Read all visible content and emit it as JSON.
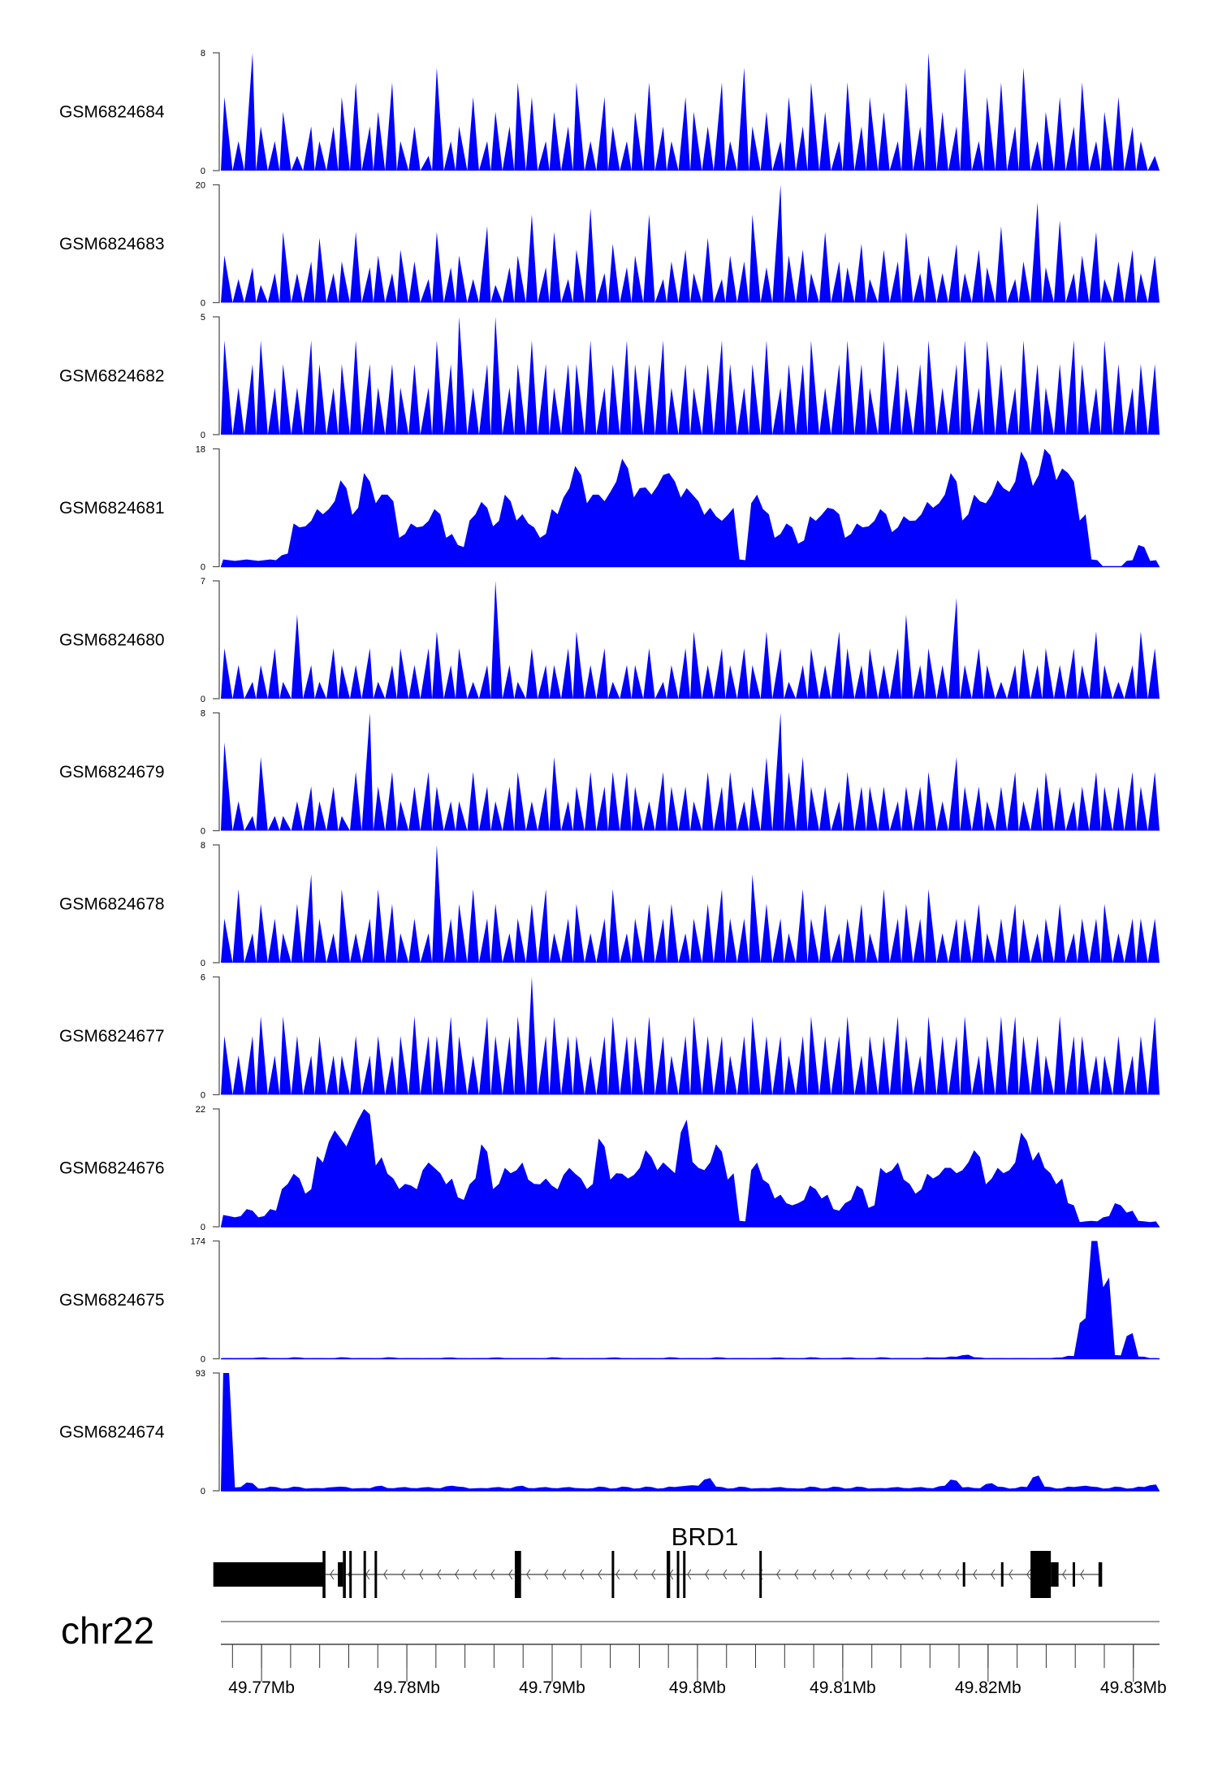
{
  "chart_data": {
    "type": "area",
    "chromosome": "chr22",
    "xrange_mb": [
      49.7672,
      49.8318
    ],
    "x_ticks": [
      "49.77Mb",
      "49.78Mb",
      "49.79Mb",
      "49.8Mb",
      "49.81Mb",
      "49.82Mb",
      "49.83Mb"
    ],
    "x_tick_values": [
      49.77,
      49.78,
      49.79,
      49.8,
      49.81,
      49.82,
      49.83
    ],
    "minor_tick_step_mb": 0.002,
    "fill_color": "#0000ff",
    "tracks": [
      {
        "name": "GSM6824684",
        "ymax": 8,
        "style": "spike",
        "values": [
          5,
          2,
          8,
          3,
          2,
          4,
          1,
          3,
          2,
          3,
          5,
          6,
          3,
          4,
          6,
          2,
          3,
          1,
          7,
          2,
          3,
          5,
          2,
          4,
          3,
          6,
          5,
          2,
          4,
          3,
          6,
          2,
          5,
          3,
          2,
          4,
          6,
          3,
          2,
          5,
          4,
          3,
          6,
          2,
          7,
          3,
          4,
          2,
          5,
          3,
          6,
          4,
          2,
          6,
          3,
          5,
          4,
          2,
          6,
          3,
          8,
          4,
          3,
          7,
          2,
          5,
          6,
          3,
          7,
          2,
          4,
          5,
          3,
          6,
          2,
          4,
          5,
          3,
          2,
          1
        ]
      },
      {
        "name": "GSM6824683",
        "ymax": 20,
        "style": "spike",
        "values": [
          8,
          4,
          6,
          3,
          5,
          12,
          5,
          7,
          11,
          5,
          7,
          12,
          6,
          8,
          5,
          9,
          7,
          4,
          12,
          6,
          8,
          4,
          13,
          3,
          6,
          8,
          15,
          6,
          12,
          4,
          9,
          16,
          5,
          10,
          6,
          8,
          15,
          4,
          7,
          9,
          5,
          11,
          4,
          8,
          7,
          15,
          6,
          20,
          8,
          9,
          5,
          12,
          7,
          6,
          10,
          4,
          9,
          7,
          12,
          5,
          8,
          5,
          10,
          5,
          9,
          6,
          13,
          4,
          7,
          17,
          6,
          14,
          5,
          8,
          12,
          4,
          7,
          9,
          5,
          8
        ]
      },
      {
        "name": "GSM6824682",
        "ymax": 5,
        "style": "spike",
        "values": [
          4,
          2,
          3,
          4,
          2,
          3,
          2,
          4,
          3,
          2,
          3,
          4,
          3,
          2,
          3,
          2,
          3,
          2,
          4,
          3,
          5,
          2,
          3,
          5,
          2,
          3,
          4,
          3,
          2,
          3,
          3,
          4,
          2,
          3,
          4,
          3,
          3,
          4,
          2,
          3,
          2,
          3,
          4,
          3,
          2,
          3,
          4,
          2,
          3,
          3,
          4,
          2,
          3,
          4,
          3,
          2,
          4,
          3,
          2,
          3,
          4,
          2,
          3,
          4,
          2,
          4,
          3,
          2,
          4,
          3,
          2,
          3,
          4,
          3,
          2,
          4,
          3,
          2,
          3,
          3
        ]
      },
      {
        "name": "GSM6824681",
        "ymax": 18,
        "style": "area",
        "values": [
          1,
          1,
          1,
          1,
          1,
          2,
          6,
          7,
          8,
          10,
          12,
          9,
          13,
          11,
          10,
          5,
          6,
          7,
          8,
          5,
          3,
          8,
          9,
          7,
          10,
          8,
          6,
          5,
          8,
          12,
          14,
          11,
          10,
          13,
          15,
          12,
          11,
          14,
          13,
          12,
          10,
          9,
          7,
          9,
          1,
          11,
          8,
          5,
          6,
          4,
          7,
          9,
          8,
          5,
          6,
          7,
          8,
          6,
          7,
          8,
          9,
          11,
          13,
          8,
          10,
          11,
          12,
          13,
          16,
          14,
          17,
          15,
          13,
          8,
          1,
          0,
          0,
          1,
          3,
          1
        ]
      },
      {
        "name": "GSM6824680",
        "ymax": 7,
        "style": "spike",
        "values": [
          3,
          2,
          1,
          2,
          3,
          1,
          5,
          2,
          1,
          3,
          2,
          2,
          3,
          1,
          2,
          3,
          2,
          3,
          4,
          2,
          3,
          1,
          2,
          7,
          2,
          1,
          3,
          2,
          2,
          3,
          4,
          2,
          3,
          1,
          2,
          2,
          3,
          1,
          2,
          3,
          4,
          2,
          3,
          2,
          3,
          2,
          4,
          3,
          1,
          2,
          3,
          2,
          4,
          3,
          2,
          3,
          2,
          3,
          5,
          2,
          3,
          2,
          6,
          2,
          3,
          2,
          1,
          2,
          3,
          2,
          3,
          2,
          3,
          2,
          4,
          2,
          1,
          2,
          4,
          3
        ]
      },
      {
        "name": "GSM6824679",
        "ymax": 8,
        "style": "spike",
        "values": [
          6,
          2,
          1,
          5,
          1,
          1,
          2,
          3,
          2,
          3,
          1,
          4,
          8,
          3,
          4,
          2,
          3,
          4,
          3,
          2,
          2,
          4,
          3,
          2,
          3,
          4,
          2,
          3,
          5,
          2,
          3,
          4,
          3,
          4,
          4,
          3,
          2,
          4,
          3,
          3,
          2,
          4,
          3,
          4,
          2,
          3,
          5,
          8,
          4,
          5,
          3,
          3,
          2,
          4,
          3,
          3,
          3,
          2,
          3,
          3,
          4,
          2,
          5,
          3,
          3,
          2,
          3,
          4,
          2,
          3,
          4,
          3,
          2,
          3,
          4,
          3,
          3,
          4,
          3,
          4
        ]
      },
      {
        "name": "GSM6824678",
        "ymax": 8,
        "style": "spike",
        "values": [
          3,
          5,
          2,
          4,
          3,
          2,
          4,
          6,
          3,
          2,
          5,
          2,
          3,
          5,
          4,
          2,
          3,
          2,
          8,
          3,
          4,
          5,
          3,
          4,
          2,
          3,
          4,
          5,
          2,
          3,
          4,
          2,
          3,
          5,
          2,
          3,
          4,
          3,
          4,
          2,
          3,
          4,
          5,
          3,
          3,
          6,
          4,
          3,
          2,
          5,
          3,
          4,
          2,
          3,
          4,
          2,
          5,
          3,
          4,
          3,
          5,
          2,
          3,
          3,
          4,
          2,
          3,
          4,
          3,
          2,
          3,
          4,
          2,
          3,
          3,
          4,
          2,
          3,
          3,
          3
        ]
      },
      {
        "name": "GSM6824677",
        "ymax": 6,
        "style": "spike",
        "values": [
          3,
          2,
          3,
          4,
          2,
          4,
          3,
          2,
          3,
          2,
          2,
          3,
          2,
          3,
          2,
          3,
          4,
          3,
          3,
          4,
          3,
          2,
          4,
          3,
          3,
          4,
          6,
          3,
          4,
          3,
          3,
          2,
          3,
          4,
          3,
          3,
          4,
          3,
          2,
          3,
          4,
          3,
          3,
          2,
          3,
          4,
          3,
          3,
          2,
          3,
          4,
          3,
          3,
          4,
          2,
          3,
          3,
          4,
          3,
          2,
          4,
          3,
          3,
          4,
          2,
          3,
          4,
          4,
          3,
          3,
          2,
          4,
          3,
          3,
          2,
          2,
          3,
          2,
          3,
          4
        ]
      },
      {
        "name": "GSM6824676",
        "ymax": 22,
        "style": "area",
        "values": [
          2,
          2,
          3,
          2,
          3,
          8,
          9,
          7,
          12,
          18,
          15,
          20,
          21,
          13,
          9,
          8,
          7,
          12,
          10,
          9,
          5,
          9,
          14,
          8,
          10,
          12,
          8,
          9,
          7,
          11,
          9,
          8,
          15,
          10,
          9,
          11,
          13,
          12,
          10,
          20,
          11,
          12,
          14,
          10,
          1,
          12,
          8,
          6,
          4,
          5,
          7,
          6,
          3,
          5,
          7,
          4,
          10,
          12,
          8,
          7,
          9,
          11,
          10,
          12,
          13,
          9,
          10,
          12,
          16,
          14,
          10,
          9,
          4,
          1,
          1,
          2,
          4,
          3,
          1,
          1
        ]
      },
      {
        "name": "GSM6824675",
        "ymax": 174,
        "style": "area",
        "values": [
          1,
          1,
          1,
          2,
          1,
          1,
          2,
          1,
          1,
          1,
          2,
          1,
          1,
          1,
          2,
          1,
          1,
          1,
          1,
          2,
          1,
          1,
          1,
          2,
          1,
          1,
          1,
          1,
          2,
          1,
          1,
          1,
          1,
          2,
          1,
          1,
          1,
          1,
          2,
          1,
          1,
          1,
          2,
          1,
          1,
          1,
          1,
          2,
          1,
          1,
          2,
          1,
          1,
          2,
          1,
          1,
          2,
          1,
          1,
          1,
          2,
          2,
          3,
          6,
          2,
          1,
          1,
          1,
          1,
          1,
          1,
          2,
          4,
          60,
          174,
          120,
          5,
          38,
          3,
          1
        ]
      },
      {
        "name": "GSM6824674",
        "ymax": 93,
        "style": "area",
        "values": [
          93,
          3,
          6,
          2,
          3,
          2,
          3,
          2,
          2,
          3,
          3,
          2,
          2,
          4,
          2,
          3,
          2,
          3,
          2,
          4,
          3,
          2,
          2,
          3,
          2,
          4,
          2,
          3,
          2,
          3,
          2,
          2,
          3,
          2,
          3,
          2,
          3,
          2,
          3,
          4,
          4,
          10,
          3,
          2,
          3,
          2,
          2,
          3,
          2,
          2,
          3,
          2,
          3,
          2,
          3,
          2,
          2,
          3,
          2,
          3,
          2,
          4,
          8,
          3,
          2,
          6,
          3,
          2,
          3,
          12,
          3,
          2,
          3,
          4,
          3,
          2,
          3,
          2,
          3,
          5
        ]
      }
    ],
    "gene": {
      "name": "BRD1",
      "strand": "-",
      "line_mb": [
        49.7668,
        49.8278
      ],
      "exons": [
        {
          "start": 49.76668,
          "end": 49.77434,
          "kind": "utr"
        },
        {
          "start": 49.7742,
          "end": 49.7744,
          "kind": "cds"
        },
        {
          "start": 49.77525,
          "end": 49.7756,
          "kind": "utr"
        },
        {
          "start": 49.7756,
          "end": 49.7758,
          "kind": "cds"
        },
        {
          "start": 49.77604,
          "end": 49.77616,
          "kind": "cds"
        },
        {
          "start": 49.77702,
          "end": 49.77714,
          "kind": "cds"
        },
        {
          "start": 49.77778,
          "end": 49.7779,
          "kind": "cds"
        },
        {
          "start": 49.78743,
          "end": 49.78786,
          "kind": "cds"
        },
        {
          "start": 49.7941,
          "end": 49.79425,
          "kind": "cds"
        },
        {
          "start": 49.79788,
          "end": 49.79812,
          "kind": "cds"
        },
        {
          "start": 49.79858,
          "end": 49.79868,
          "kind": "cds"
        },
        {
          "start": 49.79901,
          "end": 49.79911,
          "kind": "cds"
        },
        {
          "start": 49.80426,
          "end": 49.80438,
          "kind": "cds"
        },
        {
          "start": 49.81826,
          "end": 49.81837,
          "kind": "utr"
        },
        {
          "start": 49.82089,
          "end": 49.821,
          "kind": "utr"
        },
        {
          "start": 49.82292,
          "end": 49.82432,
          "kind": "cds"
        },
        {
          "start": 49.82432,
          "end": 49.82485,
          "kind": "utr"
        },
        {
          "start": 49.82582,
          "end": 49.82593,
          "kind": "utr"
        },
        {
          "start": 49.8276,
          "end": 49.82785,
          "kind": "utr"
        }
      ]
    }
  }
}
